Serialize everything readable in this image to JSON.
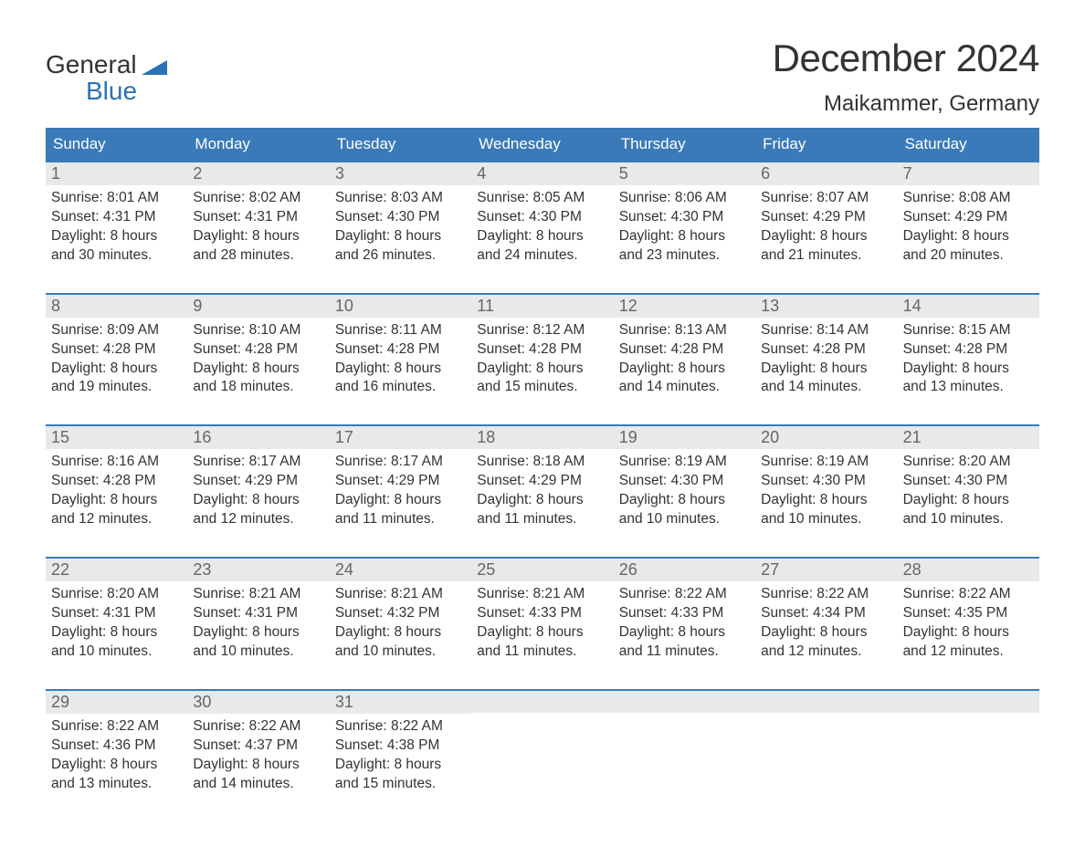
{
  "brand": {
    "line1": "General",
    "line2": "Blue"
  },
  "title": "December 2024",
  "location": "Maikammer, Germany",
  "colors": {
    "header_bg": "#3a7ab8",
    "header_text": "#ffffff",
    "daynum_bg": "#e7e9eb",
    "daynum_text": "#666666",
    "week_border": "#3a7ab8",
    "body_text": "#333333",
    "brand_blue": "#2a72b6",
    "page_bg": "#ffffff"
  },
  "typography": {
    "title_fontsize": 42,
    "location_fontsize": 24,
    "dayheader_fontsize": 17,
    "daynum_fontsize": 18,
    "body_fontsize": 15.5,
    "font_family": "Arial"
  },
  "calendar": {
    "type": "table",
    "columns": [
      "Sunday",
      "Monday",
      "Tuesday",
      "Wednesday",
      "Thursday",
      "Friday",
      "Saturday"
    ],
    "weeks": [
      [
        {
          "n": "1",
          "sunrise": "Sunrise: 8:01 AM",
          "sunset": "Sunset: 4:31 PM",
          "d1": "Daylight: 8 hours",
          "d2": "and 30 minutes."
        },
        {
          "n": "2",
          "sunrise": "Sunrise: 8:02 AM",
          "sunset": "Sunset: 4:31 PM",
          "d1": "Daylight: 8 hours",
          "d2": "and 28 minutes."
        },
        {
          "n": "3",
          "sunrise": "Sunrise: 8:03 AM",
          "sunset": "Sunset: 4:30 PM",
          "d1": "Daylight: 8 hours",
          "d2": "and 26 minutes."
        },
        {
          "n": "4",
          "sunrise": "Sunrise: 8:05 AM",
          "sunset": "Sunset: 4:30 PM",
          "d1": "Daylight: 8 hours",
          "d2": "and 24 minutes."
        },
        {
          "n": "5",
          "sunrise": "Sunrise: 8:06 AM",
          "sunset": "Sunset: 4:30 PM",
          "d1": "Daylight: 8 hours",
          "d2": "and 23 minutes."
        },
        {
          "n": "6",
          "sunrise": "Sunrise: 8:07 AM",
          "sunset": "Sunset: 4:29 PM",
          "d1": "Daylight: 8 hours",
          "d2": "and 21 minutes."
        },
        {
          "n": "7",
          "sunrise": "Sunrise: 8:08 AM",
          "sunset": "Sunset: 4:29 PM",
          "d1": "Daylight: 8 hours",
          "d2": "and 20 minutes."
        }
      ],
      [
        {
          "n": "8",
          "sunrise": "Sunrise: 8:09 AM",
          "sunset": "Sunset: 4:28 PM",
          "d1": "Daylight: 8 hours",
          "d2": "and 19 minutes."
        },
        {
          "n": "9",
          "sunrise": "Sunrise: 8:10 AM",
          "sunset": "Sunset: 4:28 PM",
          "d1": "Daylight: 8 hours",
          "d2": "and 18 minutes."
        },
        {
          "n": "10",
          "sunrise": "Sunrise: 8:11 AM",
          "sunset": "Sunset: 4:28 PM",
          "d1": "Daylight: 8 hours",
          "d2": "and 16 minutes."
        },
        {
          "n": "11",
          "sunrise": "Sunrise: 8:12 AM",
          "sunset": "Sunset: 4:28 PM",
          "d1": "Daylight: 8 hours",
          "d2": "and 15 minutes."
        },
        {
          "n": "12",
          "sunrise": "Sunrise: 8:13 AM",
          "sunset": "Sunset: 4:28 PM",
          "d1": "Daylight: 8 hours",
          "d2": "and 14 minutes."
        },
        {
          "n": "13",
          "sunrise": "Sunrise: 8:14 AM",
          "sunset": "Sunset: 4:28 PM",
          "d1": "Daylight: 8 hours",
          "d2": "and 14 minutes."
        },
        {
          "n": "14",
          "sunrise": "Sunrise: 8:15 AM",
          "sunset": "Sunset: 4:28 PM",
          "d1": "Daylight: 8 hours",
          "d2": "and 13 minutes."
        }
      ],
      [
        {
          "n": "15",
          "sunrise": "Sunrise: 8:16 AM",
          "sunset": "Sunset: 4:28 PM",
          "d1": "Daylight: 8 hours",
          "d2": "and 12 minutes."
        },
        {
          "n": "16",
          "sunrise": "Sunrise: 8:17 AM",
          "sunset": "Sunset: 4:29 PM",
          "d1": "Daylight: 8 hours",
          "d2": "and 12 minutes."
        },
        {
          "n": "17",
          "sunrise": "Sunrise: 8:17 AM",
          "sunset": "Sunset: 4:29 PM",
          "d1": "Daylight: 8 hours",
          "d2": "and 11 minutes."
        },
        {
          "n": "18",
          "sunrise": "Sunrise: 8:18 AM",
          "sunset": "Sunset: 4:29 PM",
          "d1": "Daylight: 8 hours",
          "d2": "and 11 minutes."
        },
        {
          "n": "19",
          "sunrise": "Sunrise: 8:19 AM",
          "sunset": "Sunset: 4:30 PM",
          "d1": "Daylight: 8 hours",
          "d2": "and 10 minutes."
        },
        {
          "n": "20",
          "sunrise": "Sunrise: 8:19 AM",
          "sunset": "Sunset: 4:30 PM",
          "d1": "Daylight: 8 hours",
          "d2": "and 10 minutes."
        },
        {
          "n": "21",
          "sunrise": "Sunrise: 8:20 AM",
          "sunset": "Sunset: 4:30 PM",
          "d1": "Daylight: 8 hours",
          "d2": "and 10 minutes."
        }
      ],
      [
        {
          "n": "22",
          "sunrise": "Sunrise: 8:20 AM",
          "sunset": "Sunset: 4:31 PM",
          "d1": "Daylight: 8 hours",
          "d2": "and 10 minutes."
        },
        {
          "n": "23",
          "sunrise": "Sunrise: 8:21 AM",
          "sunset": "Sunset: 4:31 PM",
          "d1": "Daylight: 8 hours",
          "d2": "and 10 minutes."
        },
        {
          "n": "24",
          "sunrise": "Sunrise: 8:21 AM",
          "sunset": "Sunset: 4:32 PM",
          "d1": "Daylight: 8 hours",
          "d2": "and 10 minutes."
        },
        {
          "n": "25",
          "sunrise": "Sunrise: 8:21 AM",
          "sunset": "Sunset: 4:33 PM",
          "d1": "Daylight: 8 hours",
          "d2": "and 11 minutes."
        },
        {
          "n": "26",
          "sunrise": "Sunrise: 8:22 AM",
          "sunset": "Sunset: 4:33 PM",
          "d1": "Daylight: 8 hours",
          "d2": "and 11 minutes."
        },
        {
          "n": "27",
          "sunrise": "Sunrise: 8:22 AM",
          "sunset": "Sunset: 4:34 PM",
          "d1": "Daylight: 8 hours",
          "d2": "and 12 minutes."
        },
        {
          "n": "28",
          "sunrise": "Sunrise: 8:22 AM",
          "sunset": "Sunset: 4:35 PM",
          "d1": "Daylight: 8 hours",
          "d2": "and 12 minutes."
        }
      ],
      [
        {
          "n": "29",
          "sunrise": "Sunrise: 8:22 AM",
          "sunset": "Sunset: 4:36 PM",
          "d1": "Daylight: 8 hours",
          "d2": "and 13 minutes."
        },
        {
          "n": "30",
          "sunrise": "Sunrise: 8:22 AM",
          "sunset": "Sunset: 4:37 PM",
          "d1": "Daylight: 8 hours",
          "d2": "and 14 minutes."
        },
        {
          "n": "31",
          "sunrise": "Sunrise: 8:22 AM",
          "sunset": "Sunset: 4:38 PM",
          "d1": "Daylight: 8 hours",
          "d2": "and 15 minutes."
        },
        null,
        null,
        null,
        null
      ]
    ]
  }
}
